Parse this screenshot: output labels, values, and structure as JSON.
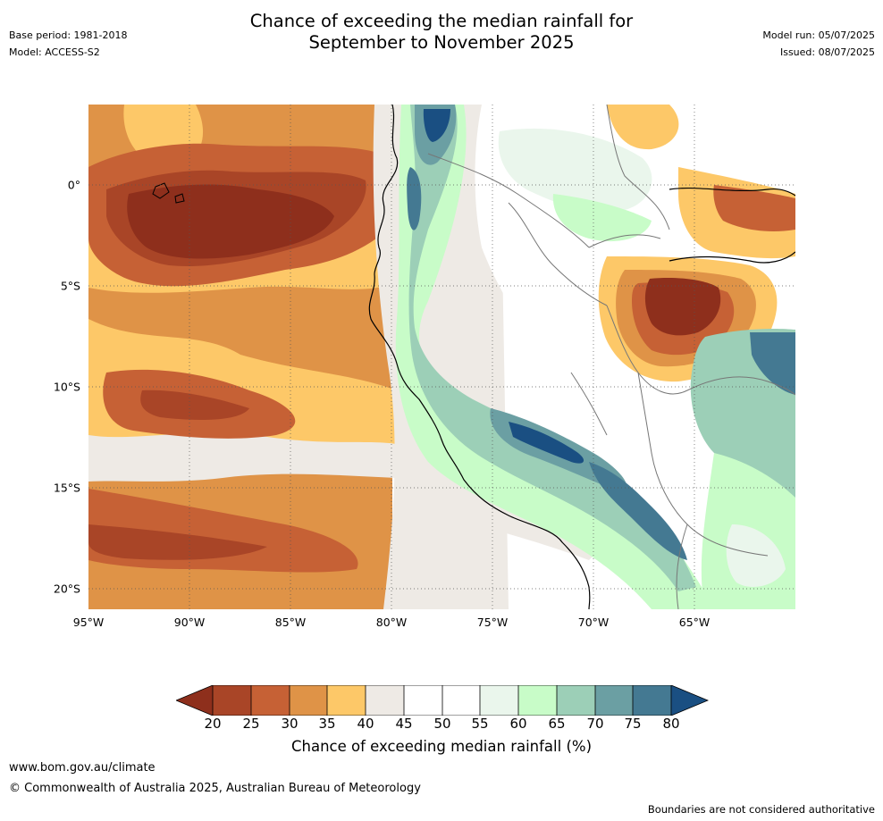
{
  "header": {
    "base_period": "Base period: 1981-2018",
    "model": "Model: ACCESS-S2",
    "title_line1": "Chance of exceeding the median rainfall for",
    "title_line2": "September to November 2025",
    "model_run": "Model run: 05/07/2025",
    "issued": "Issued: 08/07/2025"
  },
  "map": {
    "lat_labels": [
      "0°",
      "5°S",
      "10°S",
      "15°S",
      "20°S"
    ],
    "lon_labels": [
      "95°W",
      "90°W",
      "85°W",
      "80°W",
      "75°W",
      "70°W",
      "65°W"
    ],
    "gridlines": "dotted",
    "region_summary": [
      {
        "area": "eastern Pacific near Galápagos",
        "category": "20-25"
      },
      {
        "area": "Pacific off Peru and Chile",
        "category": "25-40"
      },
      {
        "area": "Andes foothills of Peru and Bolivia",
        "category": "70-80"
      },
      {
        "area": "central Amazon",
        "category": "20-30"
      },
      {
        "area": "Ecuador coastal Andes",
        "category": "70-80"
      }
    ]
  },
  "colorbar": {
    "ticks": [
      "20",
      "25",
      "30",
      "35",
      "40",
      "45",
      "50",
      "55",
      "60",
      "65",
      "70",
      "75",
      "80"
    ],
    "colors": [
      "#8e2f1c",
      "#a94527",
      "#c66135",
      "#df9347",
      "#fdc868",
      "#eeeae5",
      "#ffffff",
      "#ffffff",
      "#eaf6ec",
      "#c8fcc8",
      "#9ccfb7",
      "#6b9fa3",
      "#447992",
      "#1a4f82"
    ],
    "label": "Chance of exceeding median rainfall (%)"
  },
  "footer": {
    "url": "www.bom.gov.au/climate",
    "copyright": "© Commonwealth of Australia 2025, Australian Bureau of Meteorology",
    "disclaimer": "Boundaries are not considered authoritative"
  }
}
